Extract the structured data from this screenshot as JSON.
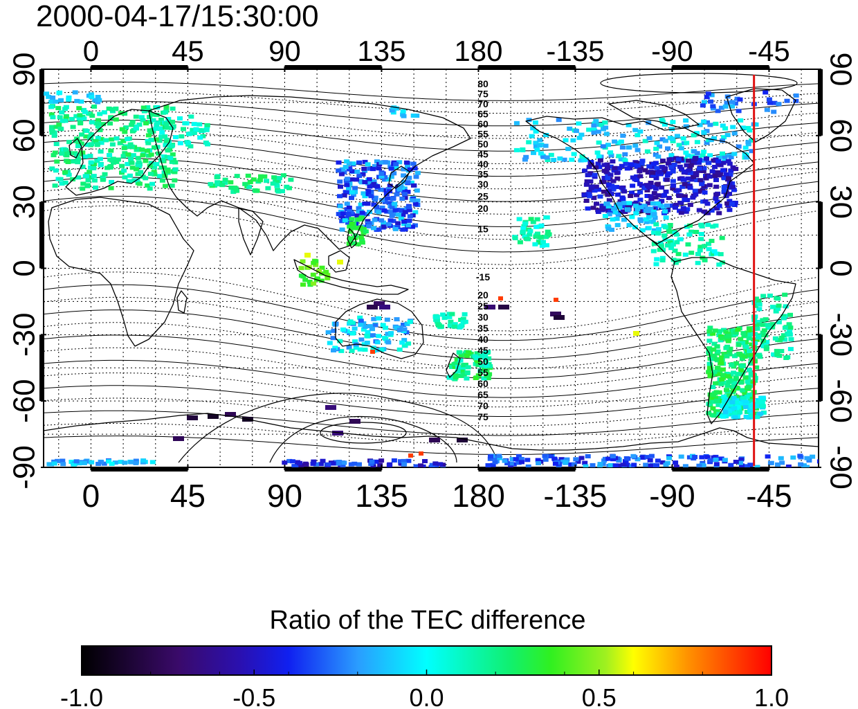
{
  "timestamp": "2000-04-17/15:30:00",
  "x_tick_labels": [
    "0",
    "45",
    "90",
    "135",
    "180",
    "-135",
    "-90",
    "-45"
  ],
  "y_tick_labels": [
    "90",
    "60",
    "30",
    "0",
    "-30",
    "-60",
    "-90"
  ],
  "contour_labels_north": [
    "80",
    "75",
    "70",
    "65",
    "60",
    "55",
    "50",
    "45",
    "40",
    "35",
    "30",
    "25",
    "20",
    "15"
  ],
  "contour_labels_south": [
    "-15",
    "20",
    "25",
    "30",
    "35",
    "40",
    "45",
    "50",
    "55",
    "60",
    "65",
    "70",
    "75"
  ],
  "colorbar": {
    "title": "Ratio of the TEC difference",
    "tick_labels": [
      "-1.0",
      "-0.5",
      "0.0",
      "0.5",
      "1.0"
    ],
    "range": [
      -1.0,
      1.0
    ]
  },
  "map": {
    "projection": "equirectangular",
    "lon_start": -22,
    "lon_ticks": [
      0,
      45,
      90,
      135,
      180,
      225,
      270,
      315
    ],
    "lat_ticks": [
      90,
      60,
      30,
      0,
      -30,
      -60,
      -90
    ],
    "terminator_longitude": -52,
    "terminator_color": "#e01010",
    "colors": {
      "frame": "#000000",
      "coastline": "#000000"
    }
  }
}
